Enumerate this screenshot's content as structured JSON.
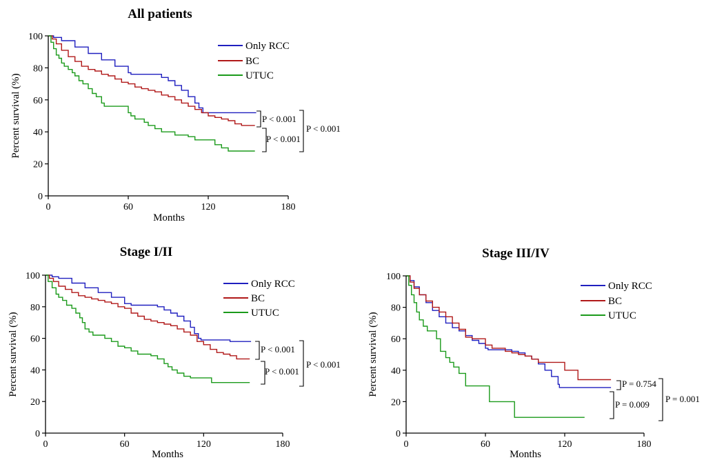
{
  "colors": {
    "only_rcc": "#1f1fbf",
    "bc": "#b01818",
    "utuc": "#1a9a1a"
  },
  "chart_data": [
    {
      "type": "line",
      "title": "All patients",
      "xlabel": "Months",
      "ylabel": "Percent survival (%)",
      "xlim": [
        0,
        180
      ],
      "ylim": [
        0,
        100
      ],
      "xticks": [
        "0",
        "60",
        "120",
        "180"
      ],
      "yticks": [
        "0",
        "20",
        "40",
        "60",
        "80",
        "100"
      ],
      "series": [
        {
          "name": "Only RCC",
          "color": "#1f1fbf",
          "x": [
            0,
            4,
            10,
            20,
            30,
            40,
            50,
            60,
            62,
            65,
            70,
            75,
            80,
            85,
            90,
            95,
            100,
            105,
            110,
            113,
            116,
            118,
            120,
            130,
            140,
            150,
            156
          ],
          "y": [
            100,
            99,
            97,
            93,
            89,
            85,
            81,
            77,
            76,
            76,
            76,
            76,
            76,
            74,
            72,
            69,
            66,
            62,
            58,
            55,
            52,
            52,
            52,
            52,
            52,
            52,
            52
          ]
        },
        {
          "name": "BC",
          "color": "#b01818",
          "x": [
            0,
            3,
            6,
            10,
            15,
            20,
            25,
            30,
            35,
            40,
            45,
            50,
            55,
            60,
            65,
            70,
            75,
            80,
            85,
            90,
            95,
            100,
            105,
            110,
            115,
            120,
            125,
            130,
            135,
            140,
            145,
            150,
            155
          ],
          "y": [
            100,
            98,
            95,
            91,
            87,
            84,
            81,
            79,
            78,
            76,
            75,
            73,
            71,
            70,
            68,
            67,
            66,
            65,
            63,
            62,
            60,
            58,
            56,
            54,
            52,
            50,
            49,
            48,
            47,
            45,
            44,
            44,
            44
          ]
        },
        {
          "name": "UTUC",
          "color": "#1a9a1a",
          "x": [
            0,
            2,
            4,
            6,
            8,
            10,
            12,
            15,
            18,
            20,
            23,
            26,
            30,
            33,
            36,
            40,
            42,
            45,
            50,
            55,
            60,
            62,
            65,
            70,
            72,
            75,
            80,
            85,
            90,
            95,
            100,
            105,
            110,
            115,
            120,
            125,
            130,
            135,
            140,
            145,
            150,
            155
          ],
          "y": [
            100,
            96,
            92,
            88,
            86,
            83,
            81,
            79,
            77,
            75,
            72,
            70,
            67,
            64,
            62,
            58,
            56,
            56,
            56,
            56,
            52,
            50,
            48,
            48,
            46,
            44,
            42,
            40,
            40,
            38,
            38,
            37,
            35,
            35,
            35,
            32,
            30,
            28,
            28,
            28,
            28,
            28
          ]
        }
      ],
      "pvalues": [
        {
          "label": "P < 0.001",
          "between": [
            "Only RCC",
            "BC"
          ]
        },
        {
          "label": "P < 0.001",
          "between": [
            "BC",
            "UTUC"
          ]
        },
        {
          "label": "P < 0.001",
          "between": [
            "Only RCC",
            "UTUC"
          ]
        }
      ]
    },
    {
      "type": "line",
      "title": "Stage I/II",
      "xlabel": "Months",
      "ylabel": "Percent survival (%)",
      "xlim": [
        0,
        180
      ],
      "ylim": [
        0,
        100
      ],
      "xticks": [
        "0",
        "60",
        "120",
        "180"
      ],
      "yticks": [
        "0",
        "20",
        "40",
        "60",
        "80",
        "100"
      ],
      "series": [
        {
          "name": "Only RCC",
          "color": "#1f1fbf",
          "x": [
            0,
            5,
            10,
            20,
            30,
            40,
            50,
            60,
            65,
            70,
            75,
            80,
            85,
            90,
            95,
            100,
            105,
            110,
            113,
            116,
            118,
            120,
            130,
            140,
            150,
            156
          ],
          "y": [
            100,
            99,
            98,
            95,
            92,
            89,
            86,
            82,
            81,
            81,
            81,
            81,
            80,
            78,
            76,
            74,
            71,
            67,
            63,
            60,
            59,
            59,
            59,
            58,
            58,
            58
          ]
        },
        {
          "name": "BC",
          "color": "#b01818",
          "x": [
            0,
            3,
            6,
            10,
            15,
            20,
            25,
            30,
            35,
            40,
            45,
            50,
            55,
            60,
            65,
            70,
            75,
            80,
            85,
            90,
            95,
            100,
            105,
            110,
            115,
            120,
            125,
            130,
            135,
            140,
            145,
            150,
            155
          ],
          "y": [
            100,
            98,
            96,
            93,
            91,
            89,
            87,
            86,
            85,
            84,
            83,
            82,
            80,
            79,
            76,
            74,
            72,
            71,
            70,
            69,
            68,
            66,
            64,
            62,
            58,
            56,
            53,
            51,
            50,
            49,
            47,
            47,
            47
          ]
        },
        {
          "name": "UTUC",
          "color": "#1a9a1a",
          "x": [
            0,
            2,
            5,
            8,
            10,
            13,
            16,
            20,
            23,
            26,
            28,
            30,
            33,
            36,
            40,
            45,
            50,
            55,
            60,
            65,
            70,
            75,
            80,
            85,
            90,
            93,
            96,
            100,
            105,
            110,
            115,
            120,
            125,
            126,
            130,
            140,
            150,
            155
          ],
          "y": [
            100,
            96,
            92,
            88,
            86,
            84,
            81,
            79,
            76,
            73,
            70,
            66,
            64,
            62,
            62,
            60,
            58,
            55,
            54,
            52,
            50,
            50,
            49,
            47,
            44,
            42,
            40,
            38,
            36,
            35,
            35,
            35,
            35,
            32,
            32,
            32,
            32,
            32
          ]
        }
      ],
      "pvalues": [
        {
          "label": "P < 0.001",
          "between": [
            "Only RCC",
            "BC"
          ]
        },
        {
          "label": "P < 0.001",
          "between": [
            "BC",
            "UTUC"
          ]
        },
        {
          "label": "P < 0.001",
          "between": [
            "Only RCC",
            "UTUC"
          ]
        }
      ]
    },
    {
      "type": "line",
      "title": "Stage III/IV",
      "xlabel": "Months",
      "ylabel": "Percent survival (%)",
      "xlim": [
        0,
        180
      ],
      "ylim": [
        0,
        100
      ],
      "xticks": [
        "0",
        "60",
        "120",
        "180"
      ],
      "yticks": [
        "0",
        "20",
        "40",
        "60",
        "80",
        "100"
      ],
      "series": [
        {
          "name": "Only RCC",
          "color": "#1f1fbf",
          "x": [
            0,
            3,
            6,
            10,
            15,
            20,
            25,
            30,
            35,
            40,
            45,
            50,
            55,
            60,
            62,
            65,
            70,
            75,
            80,
            85,
            90,
            95,
            100,
            105,
            110,
            115,
            116,
            120,
            130,
            140,
            150,
            155
          ],
          "y": [
            100,
            97,
            93,
            88,
            83,
            78,
            74,
            70,
            67,
            65,
            62,
            59,
            57,
            54,
            53,
            53,
            53,
            53,
            52,
            51,
            49,
            47,
            44,
            40,
            36,
            31,
            29,
            29,
            29,
            29,
            29,
            29
          ]
        },
        {
          "name": "BC",
          "color": "#b01818",
          "x": [
            0,
            3,
            6,
            10,
            15,
            20,
            25,
            30,
            35,
            40,
            45,
            50,
            55,
            60,
            65,
            70,
            75,
            80,
            85,
            90,
            95,
            100,
            105,
            110,
            115,
            120,
            125,
            130,
            135,
            140,
            145,
            150,
            155
          ],
          "y": [
            100,
            96,
            92,
            88,
            84,
            80,
            77,
            74,
            70,
            66,
            61,
            60,
            60,
            56,
            54,
            54,
            52,
            51,
            50,
            49,
            47,
            45,
            45,
            45,
            45,
            40,
            40,
            34,
            34,
            34,
            34,
            34,
            34
          ]
        },
        {
          "name": "UTUC",
          "color": "#1a9a1a",
          "x": [
            0,
            2,
            4,
            6,
            8,
            10,
            13,
            16,
            20,
            23,
            26,
            30,
            33,
            36,
            40,
            45,
            50,
            55,
            60,
            63,
            65,
            70,
            75,
            80,
            82,
            90,
            100,
            110,
            120,
            130,
            135
          ],
          "y": [
            100,
            94,
            88,
            83,
            77,
            72,
            68,
            65,
            65,
            60,
            52,
            48,
            45,
            42,
            38,
            30,
            30,
            30,
            30,
            20,
            20,
            20,
            20,
            20,
            10,
            10,
            10,
            10,
            10,
            10,
            10
          ]
        }
      ],
      "pvalues": [
        {
          "label": "P = 0.754",
          "between": [
            "Only RCC",
            "BC"
          ]
        },
        {
          "label": "P = 0.009",
          "between": [
            "BC",
            "UTUC"
          ]
        },
        {
          "label": "P = 0.001",
          "between": [
            "Only RCC",
            "UTUC"
          ]
        }
      ]
    }
  ]
}
